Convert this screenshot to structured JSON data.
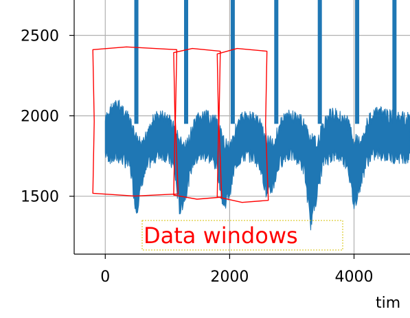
{
  "chart_data": {
    "type": "line",
    "title": "",
    "xlabel": "tim",
    "ylabel": "",
    "xlim": [
      -500,
      4900
    ],
    "ylim": [
      1140,
      2720
    ],
    "x_ticks": [
      0,
      2000,
      4000
    ],
    "x_tick_labels": [
      "0",
      "2000",
      "4000"
    ],
    "y_ticks": [
      1500,
      2000,
      2500
    ],
    "y_tick_labels": [
      "1500",
      "2000",
      "2500"
    ],
    "grid": true,
    "series": [
      {
        "color": "#1f77b4",
        "baseline": 1850,
        "x_start": 0,
        "x_end": 4900,
        "x": [
          0,
          100,
          200,
          300,
          400,
          500,
          600,
          700,
          800,
          900,
          1000,
          1100,
          1200,
          1300,
          1400,
          1500,
          1600,
          1700,
          1800,
          1900,
          2000,
          2100,
          2200,
          2300,
          2400,
          2500,
          2600,
          2700,
          2800,
          2900,
          3000,
          3100,
          3200,
          3300,
          3400,
          3500,
          3600,
          3700,
          3800,
          3900,
          4000,
          4100,
          4200,
          4300,
          4400,
          4500,
          4600,
          4700,
          4800,
          4900
        ],
        "y_high": [
          2010,
          2090,
          2110,
          2080,
          2000,
          1900,
          1850,
          1980,
          2030,
          2040,
          2030,
          1980,
          1880,
          1850,
          1960,
          2030,
          2040,
          2030,
          2000,
          1880,
          1860,
          1960,
          2030,
          2040,
          2030,
          1990,
          1890,
          1870,
          1980,
          2040,
          2040,
          2030,
          1990,
          1900,
          1870,
          1980,
          2050,
          2050,
          2040,
          2000,
          1900,
          1880,
          1990,
          2050,
          2060,
          2050,
          2040,
          2030,
          2030,
          2030
        ],
        "y_low": [
          1720,
          1690,
          1700,
          1680,
          1640,
          1360,
          1560,
          1660,
          1700,
          1720,
          1700,
          1640,
          1360,
          1480,
          1660,
          1700,
          1710,
          1690,
          1640,
          1390,
          1480,
          1660,
          1700,
          1710,
          1700,
          1640,
          1450,
          1520,
          1660,
          1710,
          1710,
          1690,
          1620,
          1280,
          1460,
          1660,
          1700,
          1710,
          1700,
          1650,
          1390,
          1530,
          1670,
          1710,
          1720,
          1710,
          1700,
          1700,
          1700,
          1700
        ],
        "spikes": [
          500,
          1300,
          2050,
          2750,
          3450,
          4050,
          4650
        ]
      }
    ],
    "annotations": [
      {
        "text": "Data windows",
        "color": "#ff0000",
        "box": "dotted yellow outline"
      }
    ],
    "data_windows": [
      {
        "x": [
          -200,
          1150
        ],
        "y": [
          1510,
          2420
        ]
      },
      {
        "x": [
          1100,
          1850
        ],
        "y": [
          1490,
          2410
        ]
      },
      {
        "x": [
          1800,
          2600
        ],
        "y": [
          1470,
          2410
        ]
      }
    ]
  }
}
